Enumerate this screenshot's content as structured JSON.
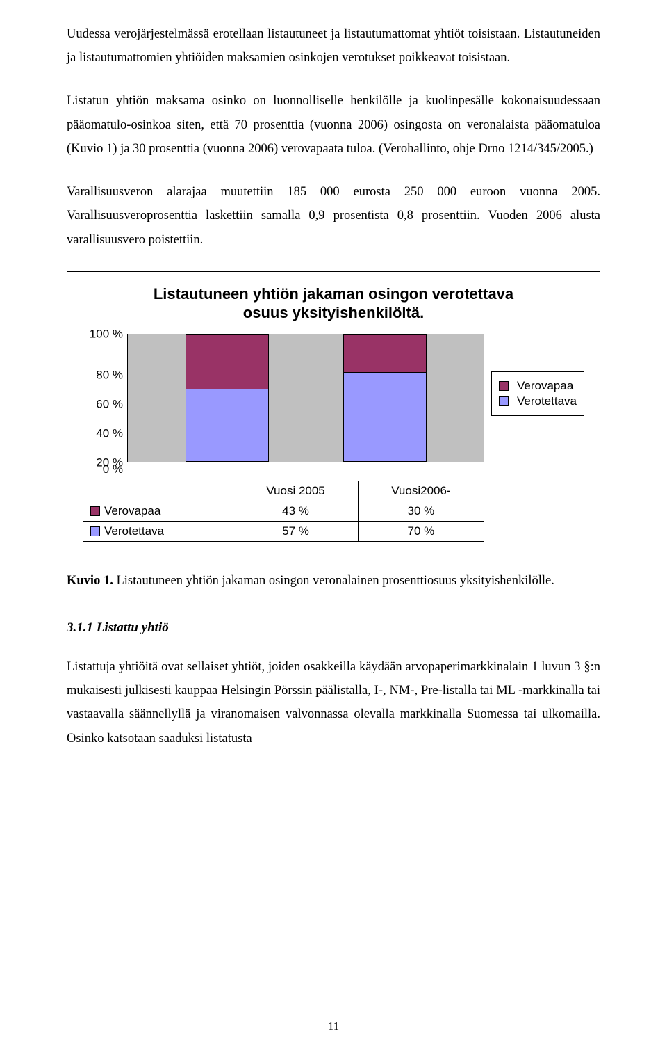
{
  "paragraphs": {
    "p1": "Uudessa verojärjestelmässä erotellaan listautuneet ja listautumattomat yhtiöt toisistaan. Listautuneiden ja listautumattomien yhtiöiden maksamien osinkojen verotukset poikkeavat toisistaan.",
    "p2": "Listatun yhtiön maksama osinko on luonnolliselle henkilölle ja kuolinpesälle kokonaisuudessaan pääomatulo-osinkoa siten, että 70 prosenttia (vuonna 2006) osingosta on veronalaista pääomatuloa (Kuvio 1) ja 30 prosenttia (vuonna 2006) verovapaata tuloa. (Verohallinto, ohje Drno 1214/345/2005.)",
    "p3": "Varallisuusveron alarajaa muutettiin 185 000 eurosta 250 000 euroon vuonna 2005. Varallisuusveroprosenttia laskettiin samalla 0,9 prosentista 0,8 prosenttiin. Vuoden 2006 alusta varallisuusvero poistettiin."
  },
  "chart": {
    "title_l1": "Listautuneen yhtiön jakaman osingon verotettava",
    "title_l2": "osuus yksityishenkilöltä.",
    "y_ticks": [
      "100 %",
      "80 %",
      "60 %",
      "40 %",
      "20 %"
    ],
    "zero": "0 %",
    "categories": [
      "Vuosi 2005",
      "Vuosi2006-"
    ],
    "series": {
      "verovapaa": {
        "label": "Verovapaa",
        "color": "#993366",
        "values": [
          "43 %",
          "30 %"
        ],
        "nums": [
          43,
          30
        ]
      },
      "verotettava": {
        "label": "Verotettava",
        "color": "#9999ff",
        "values": [
          "57 %",
          "70 %"
        ],
        "nums": [
          57,
          70
        ]
      }
    },
    "plot_bg": "#c0c0c0"
  },
  "caption": {
    "bold": "Kuvio 1.",
    "rest": " Listautuneen yhtiön jakaman osingon veronalainen prosenttiosuus yksityishenkilölle."
  },
  "section": "3.1.1 Listattu yhtiö",
  "p4": "Listattuja yhtiöitä ovat sellaiset yhtiöt, joiden osakkeilla käydään arvopaperimarkkinalain 1 luvun 3 §:n mukaisesti julkisesti kauppaa Helsingin Pörssin päälistalla, I-, NM-, Pre-listalla tai ML -markkinalla tai vastaavalla säännellyllä ja viranomaisen valvonnassa olevalla markkinalla Suomessa tai ulkomailla. Osinko katsotaan saaduksi listatusta",
  "page_number": "11"
}
